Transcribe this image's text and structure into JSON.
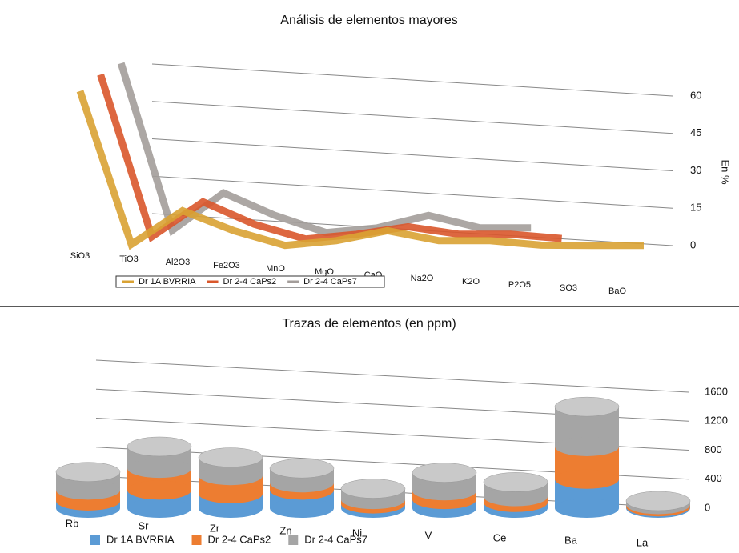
{
  "chart_data": [
    {
      "type": "line",
      "title": "Análisis de elementos mayores",
      "y_label": "En %",
      "categories": [
        "SiO3",
        "TiO3",
        "Al2O3",
        "Fe2O3",
        "MnO",
        "MgO",
        "CaO",
        "Na2O",
        "K2O",
        "P2O5",
        "SO3",
        "BaO"
      ],
      "series": [
        {
          "name": "Dr 1A  BVRRIA",
          "color": "#d9a233",
          "values": [
            62,
            0.5,
            14,
            6,
            0.1,
            2,
            6,
            2,
            2,
            0.2,
            0.1,
            0.1
          ]
        },
        {
          "name": "Dr 2-4 CaPs2",
          "color": "#d9572b",
          "values": [
            66,
            1,
            15,
            6,
            0.1,
            2,
            5,
            2,
            2,
            0.3,
            null,
            null
          ]
        },
        {
          "name": "Dr 2-4 CaPs7",
          "color": "#a39d9a",
          "values": [
            68,
            1,
            16,
            7,
            0.1,
            2,
            7,
            2,
            2,
            null,
            null,
            null
          ]
        }
      ],
      "ylim": [
        0,
        60
      ],
      "yticks": [
        0,
        15,
        30,
        45,
        60
      ],
      "grid": true,
      "legend": "bottom"
    },
    {
      "type": "bar",
      "stacked": true,
      "title": "Trazas de elementos (en ppm)",
      "categories": [
        "Rb",
        "Sr",
        "Zr",
        "Zn",
        "Ni",
        "V",
        "Ce",
        "Ba",
        "La"
      ],
      "series": [
        {
          "name": "Dr 1A  BVRRIA",
          "color": "#5b9bd5",
          "values": [
            100,
            250,
            200,
            250,
            60,
            120,
            80,
            400,
            20
          ]
        },
        {
          "name": "Dr 2-4 CaPs2",
          "color": "#ed7d31",
          "values": [
            150,
            300,
            250,
            100,
            60,
            120,
            80,
            450,
            30
          ]
        },
        {
          "name": "Dr 2-4 CaPs7",
          "color": "#a5a5a5",
          "values": [
            250,
            300,
            250,
            200,
            150,
            250,
            200,
            550,
            50
          ]
        }
      ],
      "ylim": [
        0,
        1600
      ],
      "yticks": [
        0,
        400,
        800,
        1200,
        1600
      ],
      "grid": true,
      "legend": "bottom"
    }
  ]
}
